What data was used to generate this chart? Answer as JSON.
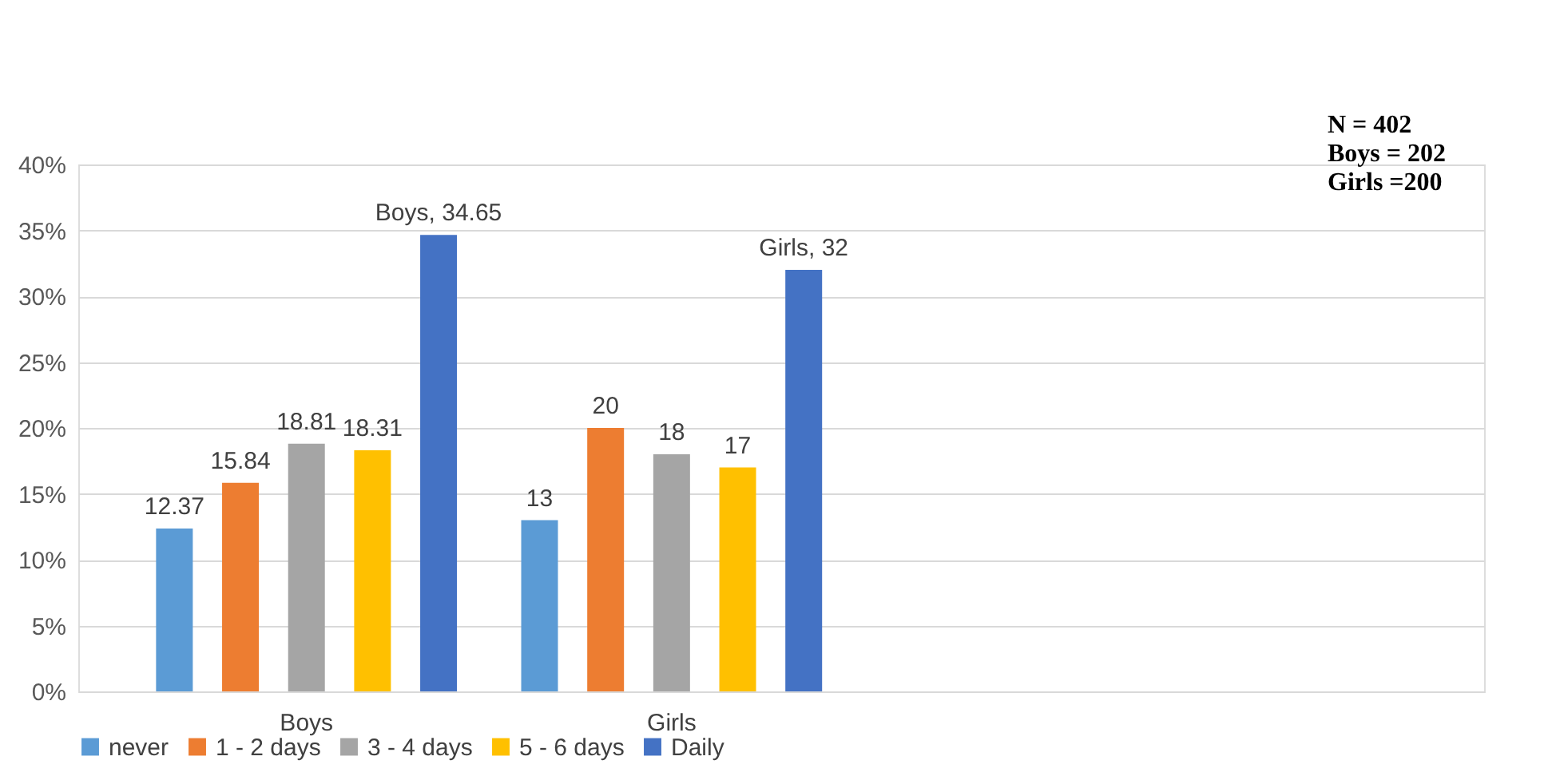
{
  "chart_data": {
    "type": "bar",
    "categories": [
      "Boys",
      "Girls"
    ],
    "series": [
      {
        "name": "never",
        "color": "#5b9bd5",
        "values": [
          12.37,
          13
        ],
        "value_labels": [
          "12.37",
          "13"
        ]
      },
      {
        "name": "1 - 2 days",
        "color": "#ed7d31",
        "values": [
          15.84,
          20
        ],
        "value_labels": [
          "15.84",
          "20"
        ]
      },
      {
        "name": "3 - 4 days",
        "color": "#a5a5a5",
        "values": [
          18.81,
          18
        ],
        "value_labels": [
          "18.81",
          "18"
        ]
      },
      {
        "name": "5 - 6 days",
        "color": "#ffc000",
        "values": [
          18.31,
          17
        ],
        "value_labels": [
          "18.31",
          "17"
        ]
      },
      {
        "name": "Daily",
        "color": "#4472c4",
        "values": [
          34.65,
          32
        ],
        "value_labels": [
          "Boys, 34.65",
          "Girls, 32"
        ]
      }
    ],
    "ylim": [
      0,
      40
    ],
    "yticks": [
      {
        "value": 0,
        "label": "0%"
      },
      {
        "value": 5,
        "label": "5%"
      },
      {
        "value": 10,
        "label": "10%"
      },
      {
        "value": 15,
        "label": "15%"
      },
      {
        "value": 20,
        "label": "20%"
      },
      {
        "value": 25,
        "label": "25%"
      },
      {
        "value": 30,
        "label": "30%"
      },
      {
        "value": 35,
        "label": "35%"
      },
      {
        "value": 40,
        "label": "40%"
      }
    ],
    "annotations": [
      "N = 402",
      "Boys = 202",
      "Girls =200"
    ],
    "grid": "y",
    "legend": "bottom"
  }
}
